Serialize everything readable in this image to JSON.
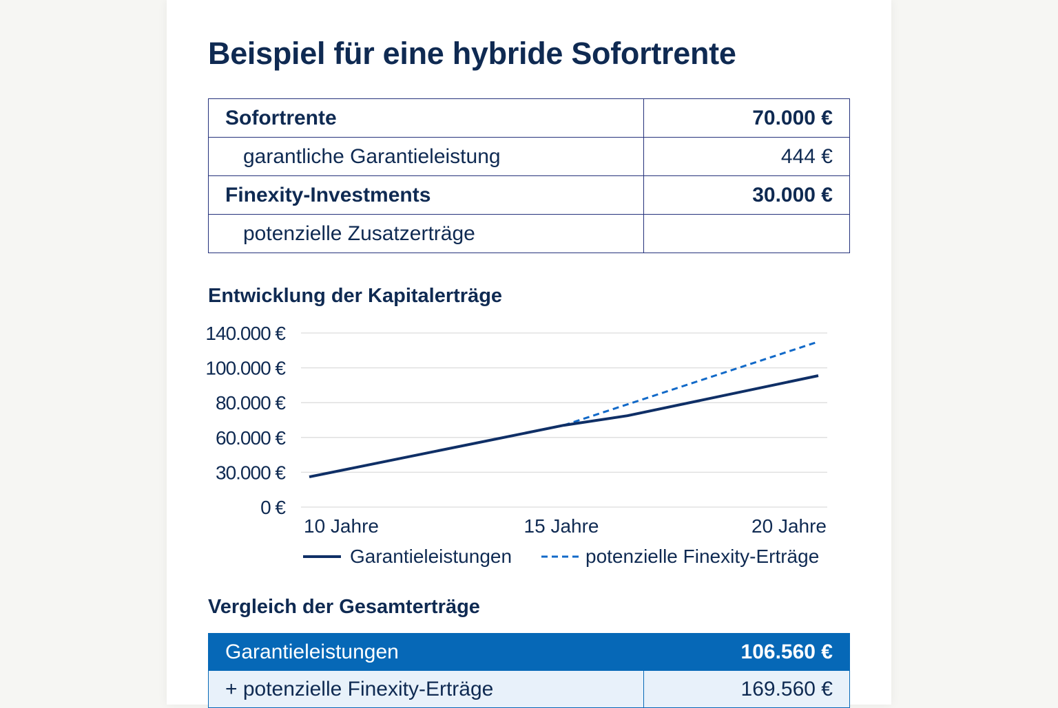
{
  "title": "Beispiel für eine hybride Sofortrente",
  "overview_table": [
    {
      "label": "Sofortrente",
      "value": "70.000 €",
      "bold": true
    },
    {
      "label": "garantliche Garantieleistung",
      "value": "444 €",
      "bold": false
    },
    {
      "label": "Finexity-Investments",
      "value": "30.000 €",
      "bold": true
    },
    {
      "label": "potenzielle Zusatzerträge",
      "value": "",
      "bold": false
    }
  ],
  "chart_heading": "Entwicklung der Kapitalerträge",
  "chart_data": {
    "type": "line",
    "title": "",
    "y_ticks": [
      "140.000 €",
      "100.000 €",
      "80.000 €",
      "60.000 €",
      "30.000 €",
      "0 €"
    ],
    "y_tick_values": [
      140000,
      100000,
      80000,
      60000,
      30000,
      0
    ],
    "x_ticks": [
      "10 Jahre",
      "15 Jahre",
      "20 Jahre"
    ],
    "x_tick_values": [
      10,
      15,
      20
    ],
    "grid": true,
    "legend_placement": "bottom",
    "series": [
      {
        "name": "Garantieleistungen",
        "style": "solid",
        "color": "#0f2f66",
        "points": [
          [
            10,
            26000
          ],
          [
            15,
            67000
          ],
          [
            16.25,
            72500
          ],
          [
            20,
            95500
          ]
        ]
      },
      {
        "name": "potenzielle Finexity-Erträge",
        "style": "dashed",
        "color": "#1169c8",
        "points": [
          [
            15,
            67000
          ],
          [
            20,
            130000
          ]
        ]
      }
    ]
  },
  "comparison_heading": "Vergleich der Gesamterträge",
  "comparison_table": [
    {
      "label": "Garantieleistungen",
      "value": "106.560 €"
    },
    {
      "label": "+ potenzielle Finexity-Erträge",
      "value": "169.560 €"
    }
  ],
  "colors": {
    "navy": "#0f2a52",
    "accent": "#0668b7",
    "light": "#e8f1fa"
  }
}
